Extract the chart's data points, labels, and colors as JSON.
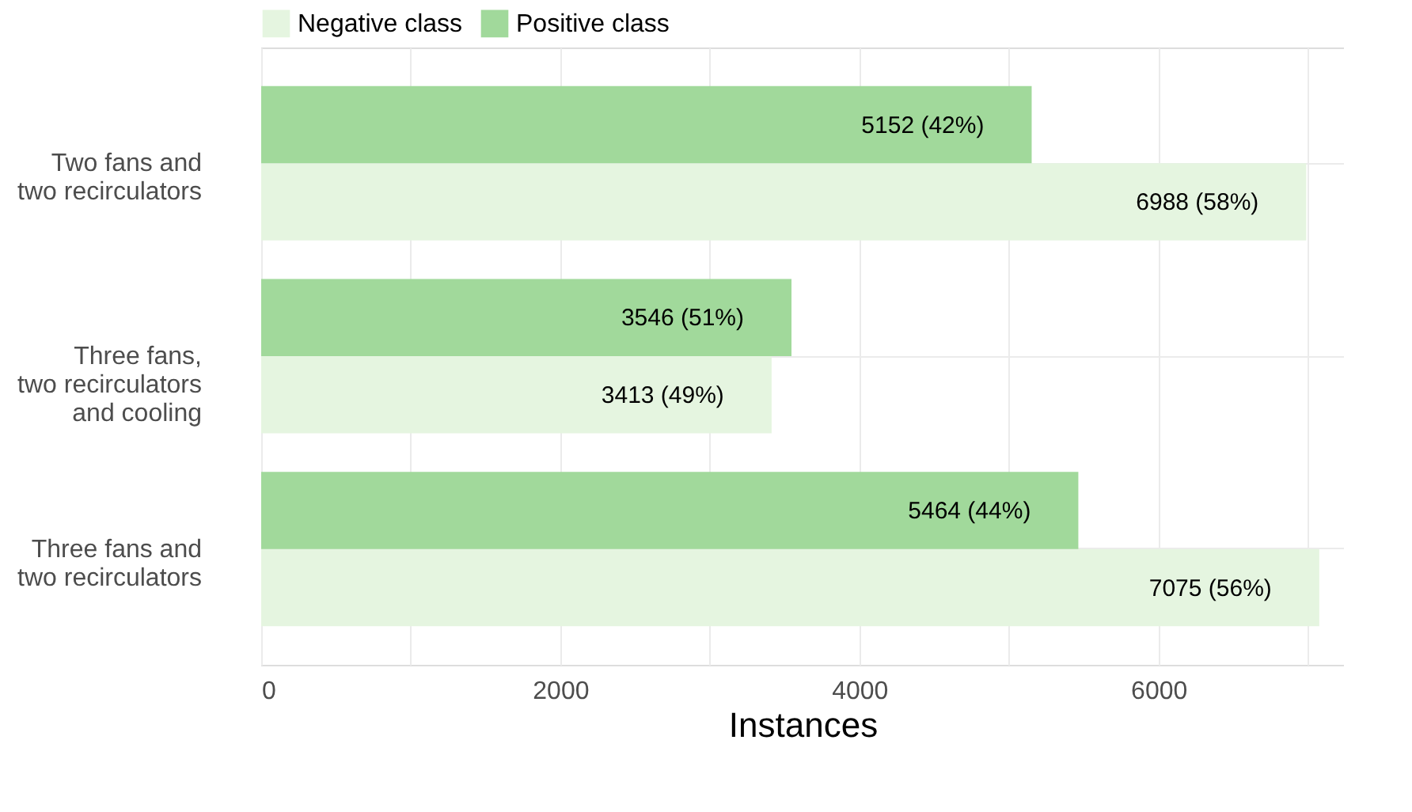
{
  "chart_data": {
    "type": "bar",
    "orientation": "horizontal",
    "xlabel": "Instances",
    "categories": [
      "Two fans and\ntwo recirculators",
      "Three fans,\ntwo recirculators\nand cooling",
      "Three fans and\ntwo recirculators"
    ],
    "series": [
      {
        "name": "Negative class",
        "color": "#e5f5e0",
        "values": [
          6988,
          3413,
          7075
        ],
        "value_labels": [
          "6988 (58%)",
          "3413 (49%)",
          "7075 (56%)"
        ]
      },
      {
        "name": "Positive class",
        "color": "#a1d99b",
        "values": [
          5152,
          3546,
          5464
        ],
        "value_labels": [
          "5152 (42%)",
          "3546 (51%)",
          "5464 (44%)"
        ]
      }
    ],
    "xlim": [
      0,
      7240
    ],
    "xticks": [
      0,
      {
        "value": 1000,
        "label": null
      },
      2000,
      {
        "value": 3000,
        "label": null
      },
      4000,
      {
        "value": 5000,
        "label": null
      },
      6000,
      {
        "value": 7000,
        "label": null
      }
    ],
    "grid": true,
    "legend": "top"
  }
}
